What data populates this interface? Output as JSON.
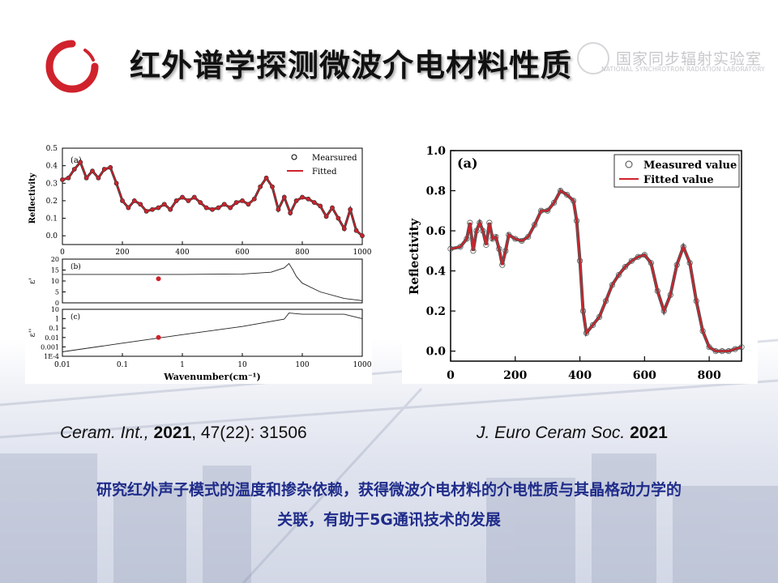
{
  "header": {
    "title": "红外谱学探测微波介电材料性质",
    "lab_cn": "国家同步辐射实验室",
    "lab_en": "NATIONAL SYNCHROTRON RADIATION LABORATORY",
    "logo_color": "#d0222c"
  },
  "citations": [
    {
      "journal": "Ceram. Int.,",
      "year": "2021",
      "rest": ", 47(22): 31506"
    },
    {
      "journal": "J. Euro Ceram Soc.",
      "year": "2021",
      "rest": ""
    }
  ],
  "summary": {
    "line1": "研究红外声子模式的温度和掺杂依赖，获得微波介电材料的介电性质与其晶格动力学的",
    "line2": "关联，有助于5G通讯技术的发展"
  },
  "chart_data": [
    {
      "type": "line",
      "panel_label": "(a)",
      "ylabel": "Reflectivity",
      "xlim": [
        0,
        1000
      ],
      "ylim": [
        -0.05,
        0.5
      ],
      "xticks": [
        "0",
        "200",
        "400",
        "600",
        "800",
        "1000"
      ],
      "yticks": [
        "0.0",
        "0.1",
        "0.2",
        "0.3",
        "0.4",
        "0.5"
      ],
      "legend": [
        "Mearsured",
        "Fitted"
      ],
      "legend_position": "top-right",
      "x": [
        0,
        20,
        40,
        60,
        80,
        100,
        120,
        140,
        160,
        180,
        200,
        220,
        240,
        260,
        280,
        300,
        320,
        340,
        360,
        380,
        400,
        420,
        440,
        460,
        480,
        500,
        520,
        540,
        560,
        580,
        600,
        620,
        640,
        660,
        680,
        700,
        720,
        740,
        760,
        780,
        800,
        820,
        840,
        860,
        880,
        900,
        920,
        940,
        960,
        980,
        1000
      ],
      "y": [
        0.32,
        0.33,
        0.38,
        0.42,
        0.33,
        0.37,
        0.33,
        0.38,
        0.39,
        0.3,
        0.2,
        0.16,
        0.2,
        0.18,
        0.14,
        0.15,
        0.16,
        0.18,
        0.15,
        0.2,
        0.22,
        0.2,
        0.22,
        0.19,
        0.16,
        0.15,
        0.16,
        0.18,
        0.16,
        0.19,
        0.2,
        0.18,
        0.21,
        0.28,
        0.33,
        0.28,
        0.15,
        0.22,
        0.13,
        0.2,
        0.22,
        0.21,
        0.19,
        0.17,
        0.11,
        0.16,
        0.1,
        0.04,
        0.15,
        0.03,
        0.0
      ]
    },
    {
      "type": "line",
      "panel_label": "(b)",
      "ylabel": "ε'",
      "xscale": "log",
      "xlim": [
        0.01,
        1000
      ],
      "ylim": [
        0,
        20
      ],
      "yticks": [
        "0",
        "5",
        "10",
        "15",
        "20"
      ],
      "point": {
        "x": 0.4,
        "y": 11
      },
      "x": [
        0.01,
        0.1,
        1,
        10,
        30,
        50,
        60,
        70,
        80,
        100,
        200,
        500,
        1000
      ],
      "y": [
        13,
        13,
        13,
        13.2,
        14,
        16,
        18,
        15,
        12,
        9,
        5,
        2,
        1
      ]
    },
    {
      "type": "line",
      "panel_label": "(c)",
      "ylabel": "ε''",
      "xscale": "log",
      "yscale": "log",
      "xlim": [
        0.01,
        1000
      ],
      "xticks": [
        "0.01",
        "0.1",
        "1",
        "10",
        "100",
        "1000"
      ],
      "yticks": [
        "1E-4",
        "0.001",
        "0.01",
        "0.1",
        "1",
        "10"
      ],
      "xlabel": "Wavenumber(cm⁻¹)",
      "point": {
        "x": 0.4,
        "y": 0.01
      },
      "x": [
        0.01,
        0.1,
        1,
        10,
        50,
        60,
        100,
        500,
        1000
      ],
      "y": [
        0.0003,
        0.0025,
        0.02,
        0.15,
        0.9,
        4,
        3,
        3,
        1
      ]
    },
    {
      "type": "line",
      "panel_label": "(a)",
      "ylabel": "Reflectivity",
      "xlim": [
        0,
        900
      ],
      "ylim": [
        -0.05,
        1.0
      ],
      "xticks": [
        "0",
        "200",
        "400",
        "600",
        "800"
      ],
      "yticks": [
        "0.0",
        "0.2",
        "0.4",
        "0.6",
        "0.8",
        "1.0"
      ],
      "legend": [
        "Measured value",
        "Fitted value"
      ],
      "legend_position": "top-right",
      "x": [
        0,
        30,
        50,
        60,
        70,
        80,
        90,
        100,
        110,
        120,
        130,
        140,
        150,
        160,
        170,
        180,
        200,
        220,
        240,
        260,
        280,
        300,
        320,
        340,
        360,
        380,
        390,
        400,
        410,
        420,
        440,
        460,
        480,
        500,
        520,
        540,
        560,
        580,
        600,
        620,
        640,
        660,
        680,
        700,
        720,
        740,
        760,
        780,
        800,
        820,
        840,
        860,
        880,
        900
      ],
      "y": [
        0.51,
        0.52,
        0.56,
        0.64,
        0.5,
        0.6,
        0.64,
        0.6,
        0.53,
        0.64,
        0.56,
        0.57,
        0.51,
        0.43,
        0.5,
        0.58,
        0.56,
        0.55,
        0.57,
        0.63,
        0.7,
        0.7,
        0.74,
        0.8,
        0.78,
        0.75,
        0.65,
        0.45,
        0.2,
        0.09,
        0.13,
        0.17,
        0.25,
        0.33,
        0.38,
        0.42,
        0.45,
        0.47,
        0.48,
        0.44,
        0.3,
        0.2,
        0.28,
        0.43,
        0.52,
        0.44,
        0.25,
        0.1,
        0.02,
        0.0,
        0.0,
        0.0,
        0.01,
        0.02
      ]
    }
  ]
}
